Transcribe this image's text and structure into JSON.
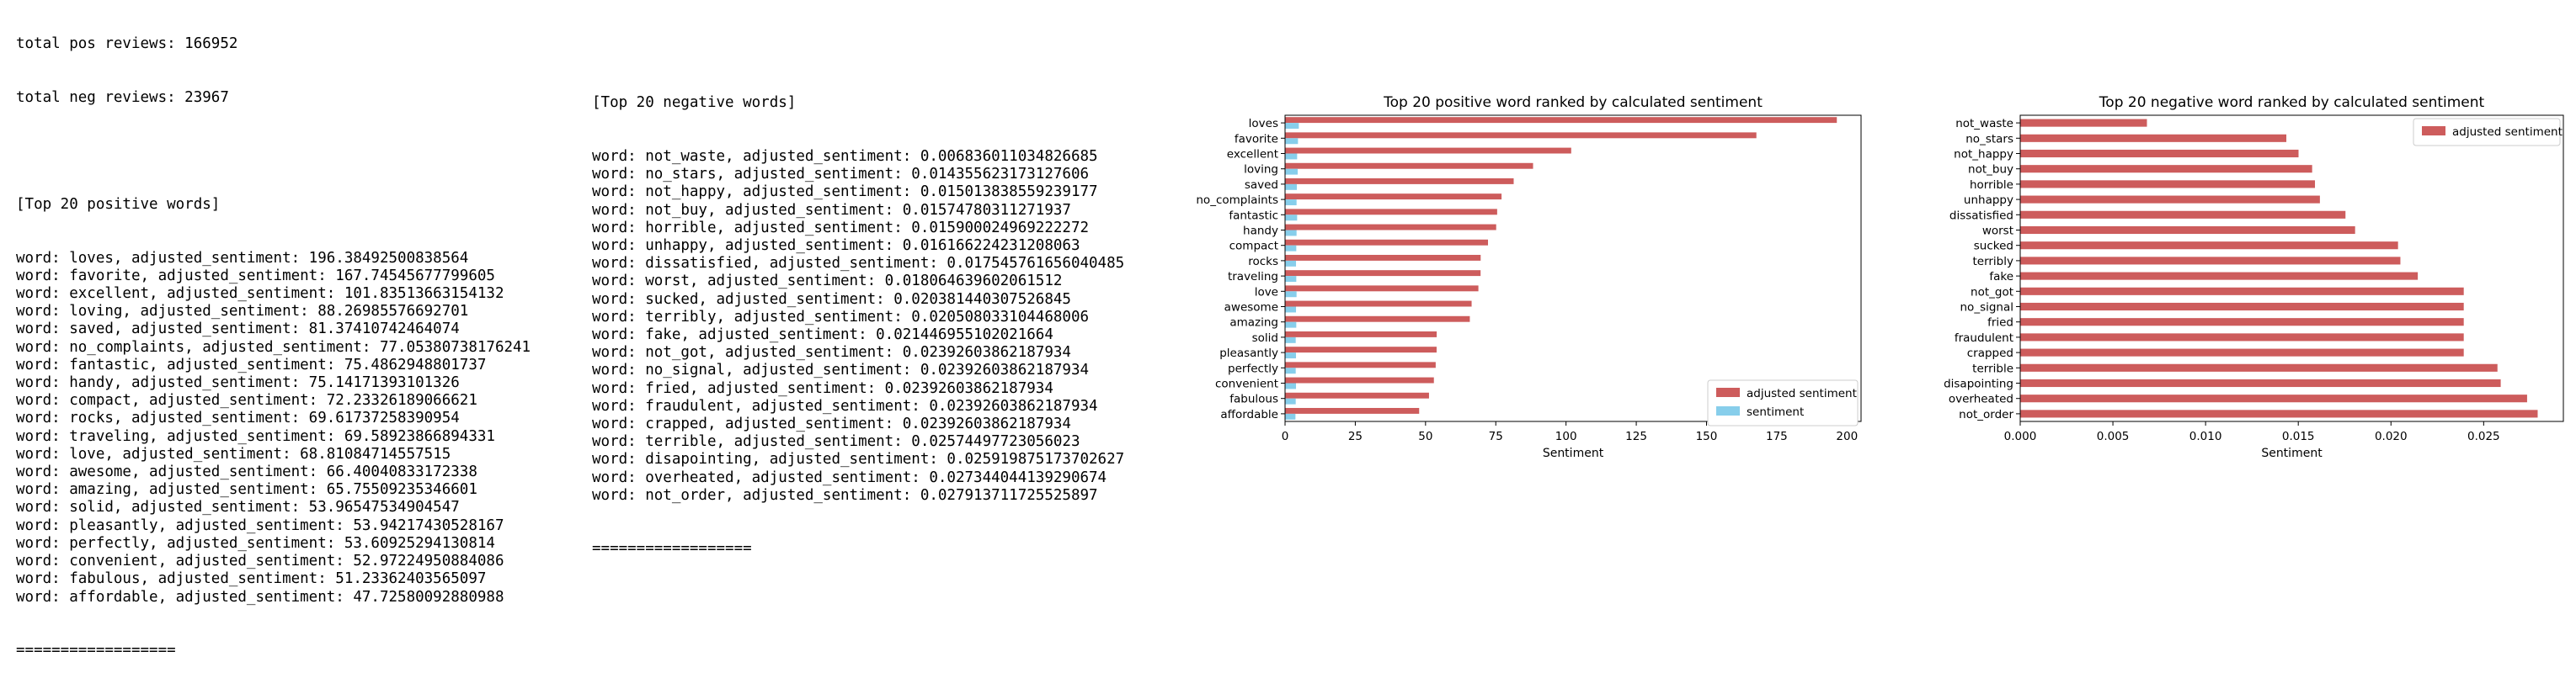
{
  "summary": {
    "total_pos": "total pos reviews: 166952",
    "total_neg": "total neg reviews: 23967"
  },
  "pos_list": {
    "header": "[Top 20 positive words]",
    "lines": [
      "word: loves, adjusted_sentiment: 196.38492500838564",
      "word: favorite, adjusted_sentiment: 167.74545677799605",
      "word: excellent, adjusted_sentiment: 101.83513663154132",
      "word: loving, adjusted_sentiment: 88.26985576692701",
      "word: saved, adjusted_sentiment: 81.37410742464074",
      "word: no_complaints, adjusted_sentiment: 77.05380738176241",
      "word: fantastic, adjusted_sentiment: 75.4862948801737",
      "word: handy, adjusted_sentiment: 75.14171393101326",
      "word: compact, adjusted_sentiment: 72.23326189066621",
      "word: rocks, adjusted_sentiment: 69.61737258390954",
      "word: traveling, adjusted_sentiment: 69.58923866894331",
      "word: love, adjusted_sentiment: 68.81084714557515",
      "word: awesome, adjusted_sentiment: 66.40040833172338",
      "word: amazing, adjusted_sentiment: 65.75509235346601",
      "word: solid, adjusted_sentiment: 53.96547534904547",
      "word: pleasantly, adjusted_sentiment: 53.94217430528167",
      "word: perfectly, adjusted_sentiment: 53.60925294130814",
      "word: convenient, adjusted_sentiment: 52.97224950884086",
      "word: fabulous, adjusted_sentiment: 51.23362403565097",
      "word: affordable, adjusted_sentiment: 47.72580092880988"
    ],
    "footer": "=================="
  },
  "neg_list": {
    "header": "[Top 20 negative words]",
    "lines": [
      "word: not_waste, adjusted_sentiment: 0.006836011034826685",
      "word: no_stars, adjusted_sentiment: 0.014355623173127606",
      "word: not_happy, adjusted_sentiment: 0.015013838559239177",
      "word: not_buy, adjusted_sentiment: 0.01574780311271937",
      "word: horrible, adjusted_sentiment: 0.015900024969222272",
      "word: unhappy, adjusted_sentiment: 0.016166224231208063",
      "word: dissatisfied, adjusted_sentiment: 0.017545761656040485",
      "word: worst, adjusted_sentiment: 0.018064639602061512",
      "word: sucked, adjusted_sentiment: 0.020381440307526845",
      "word: terribly, adjusted_sentiment: 0.020508033104468006",
      "word: fake, adjusted_sentiment: 0.021446955102021664",
      "word: not_got, adjusted_sentiment: 0.02392603862187934",
      "word: no_signal, adjusted_sentiment: 0.02392603862187934",
      "word: fried, adjusted_sentiment: 0.02392603862187934",
      "word: fraudulent, adjusted_sentiment: 0.02392603862187934",
      "word: crapped, adjusted_sentiment: 0.02392603862187934",
      "word: terrible, adjusted_sentiment: 0.02574497723056023",
      "word: disapointing, adjusted_sentiment: 0.025919875173702627",
      "word: overheated, adjusted_sentiment: 0.027344044139290674",
      "word: not_order, adjusted_sentiment: 0.027913711725525897"
    ],
    "footer": "=================="
  },
  "chart_data": [
    {
      "type": "bar",
      "orientation": "horizontal",
      "title": "Top 20 positive word ranked by calculated sentiment",
      "xlabel": "Sentiment",
      "ylabel": "",
      "xlim": [
        0,
        205
      ],
      "xticks": [
        "0",
        "25",
        "50",
        "75",
        "100",
        "125",
        "150",
        "175",
        "200"
      ],
      "xtick_values": [
        0,
        25,
        50,
        75,
        100,
        125,
        150,
        175,
        200
      ],
      "categories": [
        "loves",
        "favorite",
        "excellent",
        "loving",
        "saved",
        "no_complaints",
        "fantastic",
        "handy",
        "compact",
        "rocks",
        "traveling",
        "love",
        "awesome",
        "amazing",
        "solid",
        "pleasantly",
        "perfectly",
        "convenient",
        "fabulous",
        "affordable"
      ],
      "series": [
        {
          "name": "adjusted sentiment",
          "color": "#cd5c5c",
          "values": [
            196.38,
            167.75,
            101.84,
            88.27,
            81.37,
            77.05,
            75.49,
            75.14,
            72.23,
            69.62,
            69.59,
            68.81,
            66.4,
            65.76,
            53.97,
            53.94,
            53.61,
            52.97,
            51.23,
            47.73
          ]
        },
        {
          "name": "sentiment",
          "color": "#87ceeb",
          "values": [
            4.9,
            4.6,
            4.3,
            4.5,
            4.2,
            4.1,
            4.3,
            4.1,
            4.0,
            3.9,
            4.0,
            4.1,
            3.9,
            4.0,
            3.8,
            3.9,
            3.8,
            3.9,
            3.8,
            3.7
          ]
        }
      ],
      "legend_position": "lower right",
      "grid": false
    },
    {
      "type": "bar",
      "orientation": "horizontal",
      "title": "Top 20 negative word ranked by calculated sentiment",
      "xlabel": "Sentiment",
      "ylabel": "",
      "xlim": [
        0,
        0.0293
      ],
      "xticks": [
        "0.000",
        "0.005",
        "0.010",
        "0.015",
        "0.020",
        "0.025"
      ],
      "xtick_values": [
        0,
        0.005,
        0.01,
        0.015,
        0.02,
        0.025
      ],
      "categories": [
        "not_waste",
        "no_stars",
        "not_happy",
        "not_buy",
        "horrible",
        "unhappy",
        "dissatisfied",
        "worst",
        "sucked",
        "terribly",
        "fake",
        "not_got",
        "no_signal",
        "fried",
        "fraudulent",
        "crapped",
        "terrible",
        "disapointing",
        "overheated",
        "not_order"
      ],
      "series": [
        {
          "name": "adjusted sentiment",
          "color": "#cd5c5c",
          "values": [
            0.006836,
            0.014356,
            0.015014,
            0.015748,
            0.0159,
            0.016166,
            0.017546,
            0.018065,
            0.020381,
            0.020508,
            0.021447,
            0.023926,
            0.023926,
            0.023926,
            0.023926,
            0.023926,
            0.025745,
            0.02592,
            0.027344,
            0.027914
          ]
        }
      ],
      "legend_position": "upper right",
      "grid": false
    }
  ]
}
